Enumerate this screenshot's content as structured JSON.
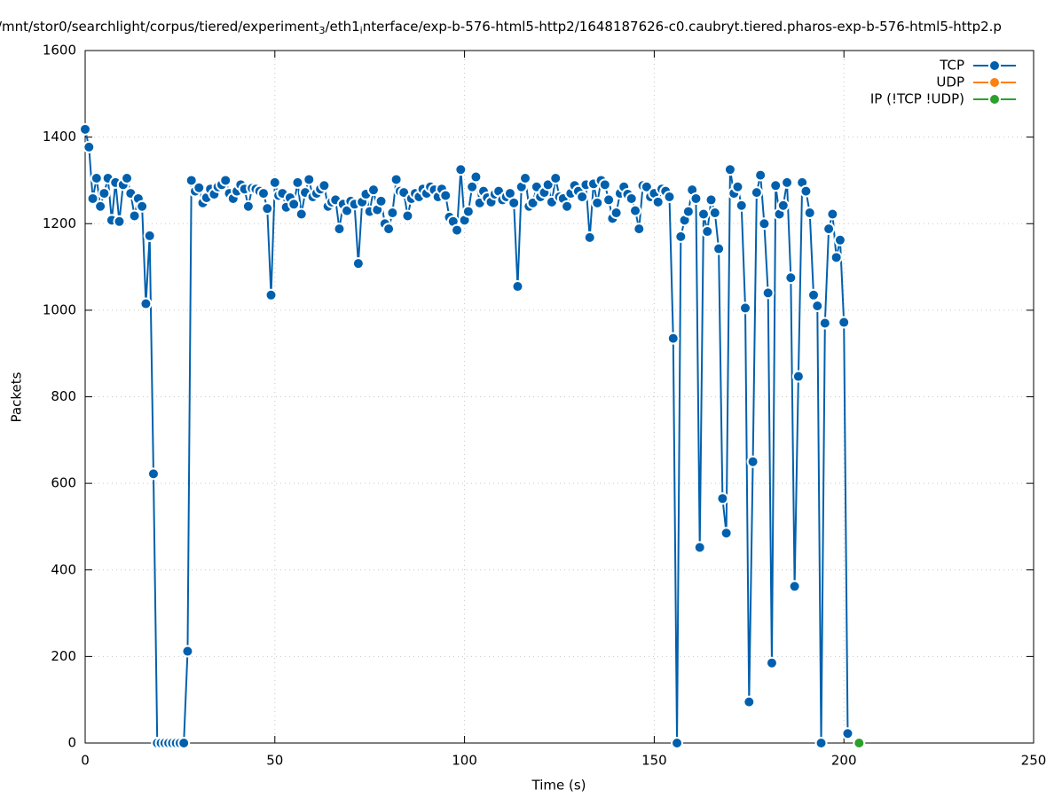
{
  "chart_data": {
    "type": "line",
    "title": [
      "/mnt/stor0/searchlight/corpus/tiered/experiment",
      "3",
      "/eth1",
      "i",
      "nterface/exp-b-576-html5-http2/1648187626-c0.caubryt.tiered.pharos-exp-b-576-html5-http2.p"
    ],
    "x_label": "Time (s)",
    "y_label": "Packets",
    "xlim": [
      0,
      250
    ],
    "xticks": [
      0,
      50,
      100,
      150,
      200,
      250
    ],
    "ylim": [
      0,
      1600
    ],
    "yticks": [
      0,
      200,
      400,
      600,
      800,
      1000,
      1200,
      1400,
      1600
    ],
    "grid": true,
    "legend": "top-right",
    "series": [
      {
        "name": "TCP",
        "color": "#0060ad",
        "x": [
          0,
          1,
          2,
          3,
          4,
          5,
          6,
          7,
          8,
          9,
          10,
          11,
          12,
          13,
          14,
          15,
          16,
          17,
          18,
          19,
          20,
          21,
          22,
          23,
          24,
          25,
          26,
          27,
          28,
          29,
          30,
          31,
          32,
          33,
          34,
          35,
          36,
          37,
          38,
          39,
          40,
          41,
          42,
          43,
          44,
          45,
          46,
          47,
          48,
          49,
          50,
          51,
          52,
          53,
          54,
          55,
          56,
          57,
          58,
          59,
          60,
          61,
          62,
          63,
          64,
          65,
          66,
          67,
          68,
          69,
          70,
          71,
          72,
          73,
          74,
          75,
          76,
          77,
          78,
          79,
          80,
          81,
          82,
          83,
          84,
          85,
          86,
          87,
          88,
          89,
          90,
          91,
          92,
          93,
          94,
          95,
          96,
          97,
          98,
          99,
          100,
          101,
          102,
          103,
          104,
          105,
          106,
          107,
          108,
          109,
          110,
          111,
          112,
          113,
          114,
          115,
          116,
          117,
          118,
          119,
          120,
          121,
          122,
          123,
          124,
          125,
          126,
          127,
          128,
          129,
          130,
          131,
          132,
          133,
          134,
          135,
          136,
          137,
          138,
          139,
          140,
          141,
          142,
          143,
          144,
          145,
          146,
          147,
          148,
          149,
          150,
          151,
          152,
          153,
          154,
          155,
          156,
          157,
          158,
          159,
          160,
          161,
          162,
          163,
          164,
          165,
          166,
          167,
          168,
          169,
          170,
          171,
          172,
          173,
          174,
          175,
          176,
          177,
          178,
          179,
          180,
          181,
          182,
          183,
          184,
          185,
          186,
          187,
          188,
          189,
          190,
          191,
          192,
          193,
          194,
          195,
          196,
          197,
          198,
          199,
          200,
          201
        ],
        "values": [
          1418,
          1377,
          1258,
          1305,
          1240,
          1270,
          1305,
          1208,
          1295,
          1205,
          1290,
          1305,
          1270,
          1218,
          1258,
          1240,
          1015,
          1172,
          622,
          0,
          0,
          0,
          0,
          0,
          0,
          0,
          0,
          212,
          1300,
          1275,
          1283,
          1248,
          1260,
          1280,
          1268,
          1285,
          1290,
          1300,
          1270,
          1258,
          1275,
          1290,
          1280,
          1240,
          1282,
          1280,
          1275,
          1270,
          1235,
          1035,
          1295,
          1265,
          1270,
          1238,
          1260,
          1245,
          1295,
          1222,
          1272,
          1302,
          1262,
          1270,
          1280,
          1288,
          1240,
          1250,
          1255,
          1188,
          1245,
          1230,
          1252,
          1245,
          1108,
          1250,
          1268,
          1228,
          1278,
          1232,
          1252,
          1200,
          1188,
          1225,
          1302,
          1275,
          1272,
          1218,
          1258,
          1270,
          1262,
          1280,
          1270,
          1285,
          1278,
          1262,
          1280,
          1265,
          1215,
          1205,
          1185,
          1325,
          1208,
          1228,
          1285,
          1308,
          1248,
          1275,
          1260,
          1250,
          1268,
          1275,
          1255,
          1262,
          1270,
          1248,
          1055,
          1285,
          1305,
          1240,
          1248,
          1285,
          1262,
          1272,
          1290,
          1250,
          1305,
          1262,
          1258,
          1240,
          1270,
          1288,
          1275,
          1262,
          1290,
          1168,
          1292,
          1248,
          1300,
          1290,
          1255,
          1212,
          1225,
          1270,
          1285,
          1268,
          1258,
          1230,
          1188,
          1288,
          1285,
          1262,
          1270,
          1250,
          1280,
          1275,
          1262,
          935,
          0,
          1170,
          1208,
          1228,
          1278,
          1258,
          452,
          1222,
          1182,
          1255,
          1225,
          1142,
          565,
          485,
          1325,
          1270,
          1285,
          1242,
          1005,
          95,
          650,
          1272,
          1312,
          1200,
          1040,
          185,
          1288,
          1222,
          1242,
          1295,
          1075,
          362,
          847,
          1295,
          1275,
          1225,
          1035,
          1010,
          0,
          970,
          1188,
          1222,
          1122,
          1162,
          972,
          22
        ]
      },
      {
        "name": "UDP",
        "color": "#ff7f0e",
        "x": [],
        "values": []
      },
      {
        "name": "IP (!TCP  !UDP)",
        "color": "#2ca02c",
        "x": [
          204
        ],
        "values": [
          0
        ]
      }
    ]
  }
}
